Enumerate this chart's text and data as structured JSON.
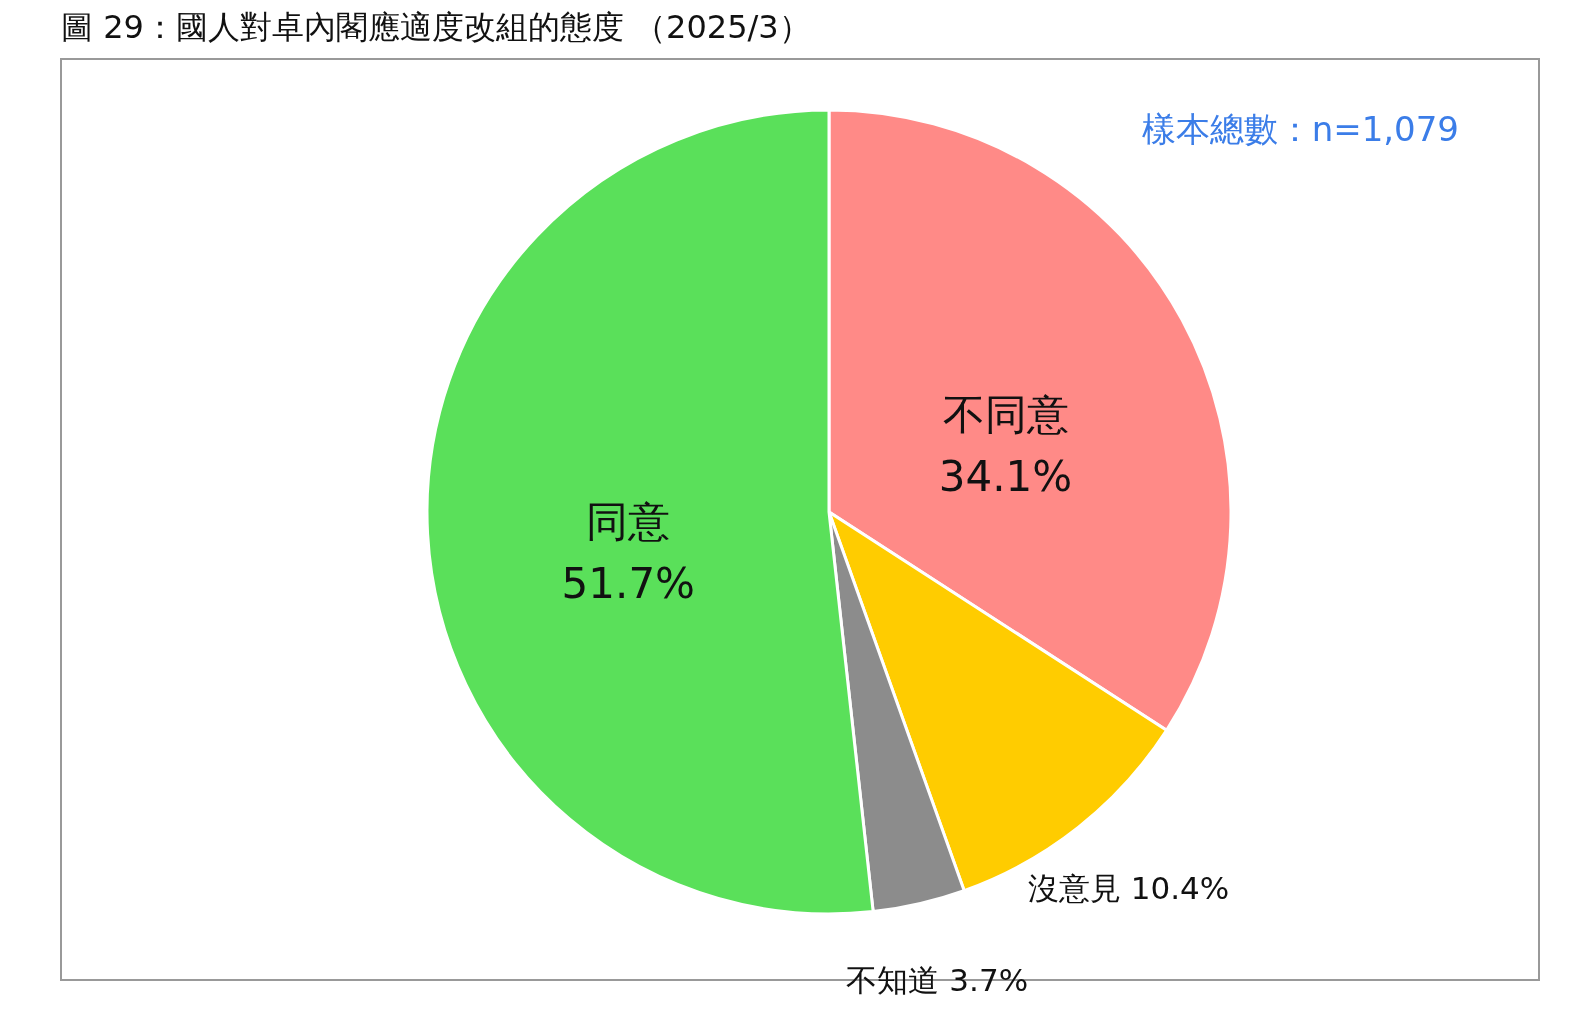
{
  "chart_data": {
    "type": "pie",
    "title": "圖 29：國人對卓內閣應適度改組的態度 （2025/3）",
    "categories": [
      "不同意",
      "沒意見",
      "不知道",
      "同意"
    ],
    "values": [
      34.1,
      10.4,
      3.7,
      51.7
    ],
    "colors": [
      "#ff8a87",
      "#ffcc00",
      "#8c8c8c",
      "#5ae05a"
    ],
    "value_labels": [
      "34.1%",
      "10.4%",
      "3.7%",
      "51.7%"
    ],
    "annotations": [
      "樣本總數：n=1,079"
    ]
  }
}
